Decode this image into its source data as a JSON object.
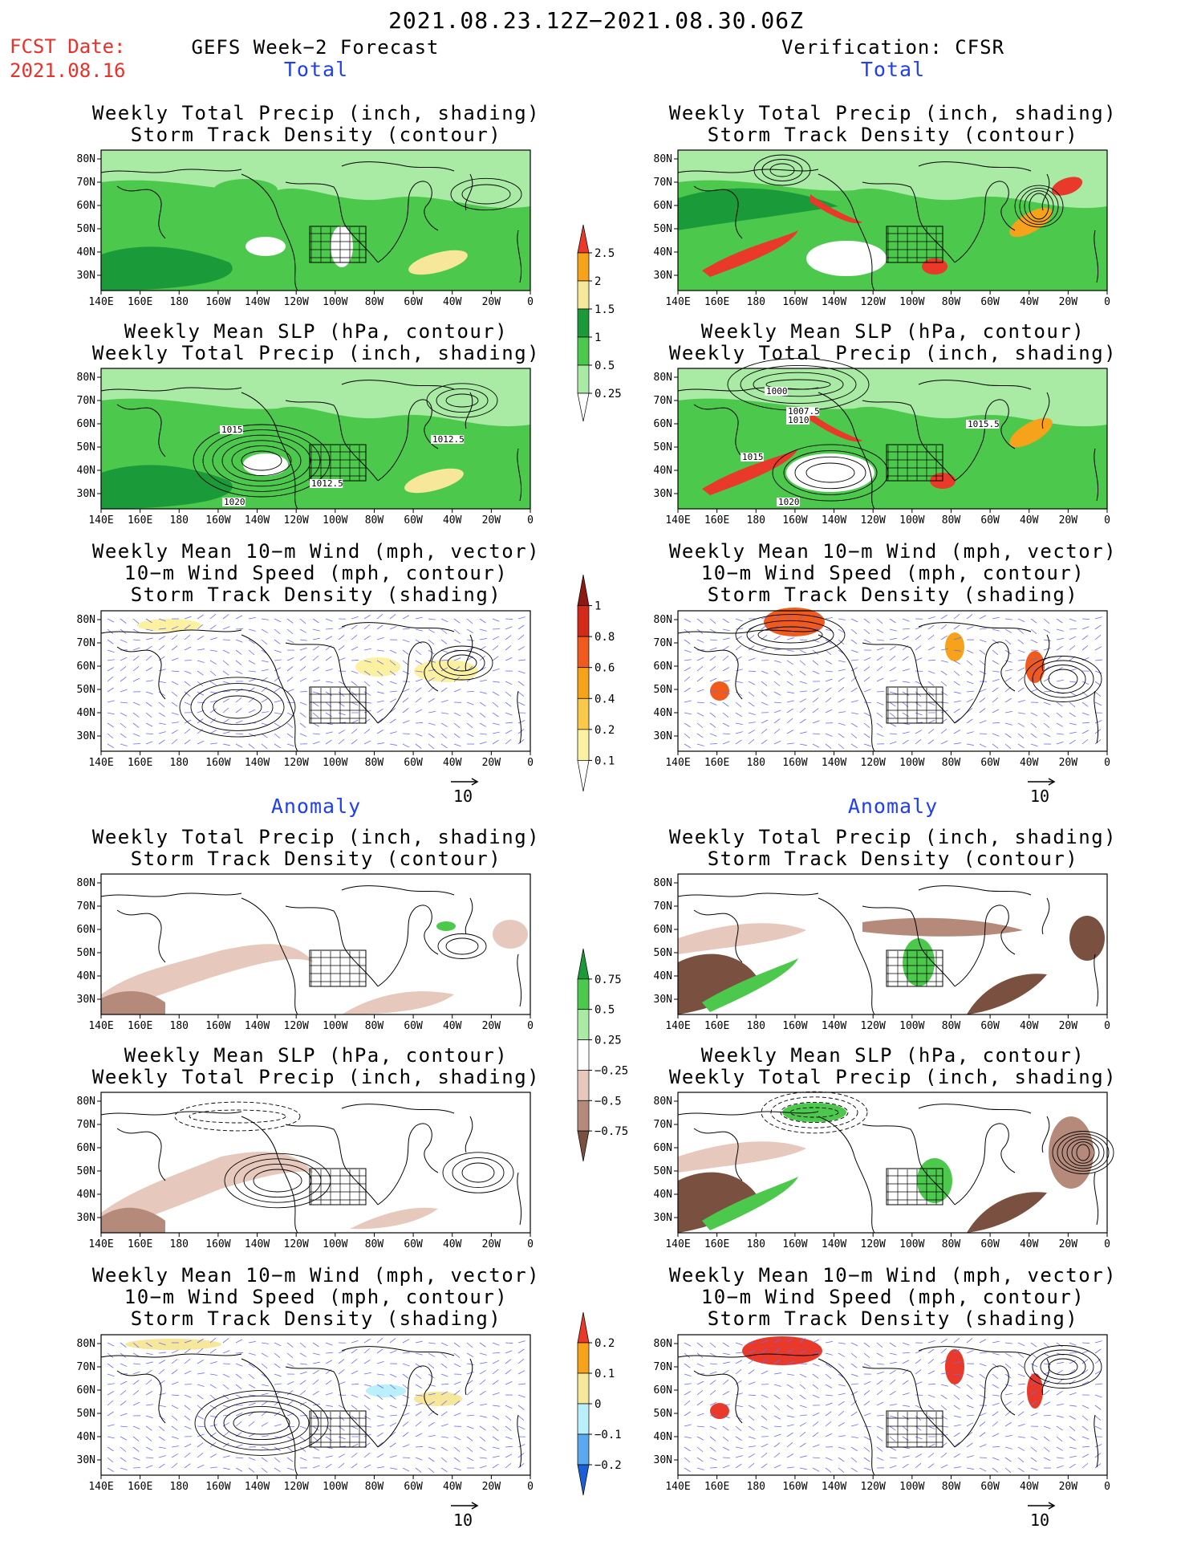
{
  "title": "2021.08.23.12Z−2021.08.30.06Z",
  "fcst": {
    "label": "FCST Date:",
    "date": "2021.08.16"
  },
  "left_header": "GEFS Week−2 Forecast",
  "right_header": "Verification: CFSR",
  "section_total": "Total",
  "section_anomaly": "Anomaly",
  "titles": {
    "precip_track": [
      "Weekly Total Precip (inch, shading)",
      "Storm Track Density (contour)"
    ],
    "slp_precip": [
      "Weekly Mean SLP (hPa, contour)",
      "Weekly Total Precip (inch, shading)"
    ],
    "wind_track": [
      "Weekly Mean 10−m Wind (mph, vector)",
      "10−m Wind Speed (mph, contour)",
      "Storm Track Density (shading)"
    ]
  },
  "axes": {
    "lat_labels": [
      "80N",
      "70N",
      "60N",
      "50N",
      "40N",
      "30N"
    ],
    "lon_labels": [
      "140E",
      "160E",
      "180",
      "160W",
      "140W",
      "120W",
      "100W",
      "80W",
      "60W",
      "40W",
      "20W",
      "0"
    ]
  },
  "vector_ref": "10",
  "colorbars": {
    "total_precip": {
      "labels": [
        "2.5",
        "2",
        "1.5",
        "1",
        "0.5",
        "0.25"
      ],
      "colors": [
        "#e8392a",
        "#f7a21b",
        "#f6e79a",
        "#1b9a3a",
        "#4cc94d",
        "#a9eba5",
        "#ffffff"
      ]
    },
    "track_density": {
      "labels": [
        "1",
        "0.8",
        "0.6",
        "0.4",
        "0.2",
        "0.1"
      ],
      "colors": [
        "#8c1a10",
        "#d32a19",
        "#f05a1c",
        "#f7a21b",
        "#f8c94b",
        "#fcf1a0",
        "#ffffff"
      ]
    },
    "anom_precip": {
      "labels": [
        "0.75",
        "0.5",
        "0.25",
        "−0.25",
        "−0.5",
        "−0.75"
      ],
      "colors": [
        "#1b9a3a",
        "#4cc94d",
        "#a9eba5",
        "#ffffff",
        "#e6c8bc",
        "#b58a7a",
        "#7a5040"
      ]
    },
    "anom_track": {
      "labels": [
        "0.2",
        "0.1",
        "0",
        "−0.1",
        "−0.2"
      ],
      "colors": [
        "#e8392a",
        "#f7a21b",
        "#f6e79a",
        "#b9f0fb",
        "#5aa8f0",
        "#1b5fd6"
      ]
    },
    "styles": {
      "land_outline": "#000000",
      "vector_color": "#6b6bf0",
      "slp_contour": "#000000"
    }
  },
  "map_contour_labels": {
    "fc_slp": [
      "1015",
      "1012.5",
      "1012.5",
      "1020"
    ],
    "ver_slp": [
      "1000",
      "1007.5",
      "1010",
      "1015",
      "1015.5",
      "1020"
    ]
  }
}
